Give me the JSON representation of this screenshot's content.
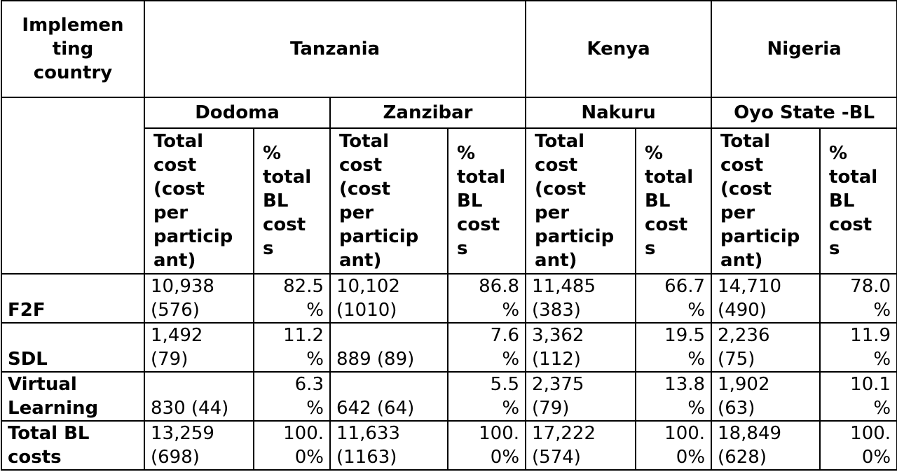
{
  "header": {
    "corner_label": "Implemen\nting\ncountry",
    "countries": [
      "Tanzania",
      "Kenya",
      "Nigeria"
    ],
    "sites": [
      "Dodoma",
      "Zanzibar",
      "Nakuru",
      "Oyo State -BL"
    ],
    "metric_total": "Total\ncost\n(cost\nper\nparticip\nant)",
    "metric_pct": "%\ntotal\nBL\ncost\ns"
  },
  "rows": [
    {
      "label": "F2F",
      "cells": [
        {
          "total": "10,938\n(576)",
          "pct": "82.5\n%"
        },
        {
          "total": "10,102\n(1010)",
          "pct": "86.8\n%"
        },
        {
          "total": "11,485\n(383)",
          "pct": "66.7\n%"
        },
        {
          "total": "14,710\n(490)",
          "pct": "78.0\n%"
        }
      ]
    },
    {
      "label": "SDL",
      "cells": [
        {
          "total": "1,492\n(79)",
          "pct": "11.2\n%"
        },
        {
          "total": "889 (89)",
          "pct": "7.6\n%"
        },
        {
          "total": "3,362\n(112)",
          "pct": "19.5\n%"
        },
        {
          "total": "2,236\n(75)",
          "pct": "11.9\n%"
        }
      ]
    },
    {
      "label": "Virtual\nLearning",
      "cells": [
        {
          "total": "830 (44)",
          "pct": "6.3\n%"
        },
        {
          "total": "642 (64)",
          "pct": "5.5\n%"
        },
        {
          "total": "2,375\n(79)",
          "pct": "13.8\n%"
        },
        {
          "total": "1,902\n(63)",
          "pct": "10.1\n%"
        }
      ]
    },
    {
      "label": "Total BL\ncosts",
      "cells": [
        {
          "total": "13,259\n(698)",
          "pct": "100.\n0%"
        },
        {
          "total": "11,633\n(1163)",
          "pct": "100.\n0%"
        },
        {
          "total": "17,222\n(574)",
          "pct": "100.\n0%"
        },
        {
          "total": "18,849\n(628)",
          "pct": "100.\n0%"
        }
      ]
    }
  ]
}
